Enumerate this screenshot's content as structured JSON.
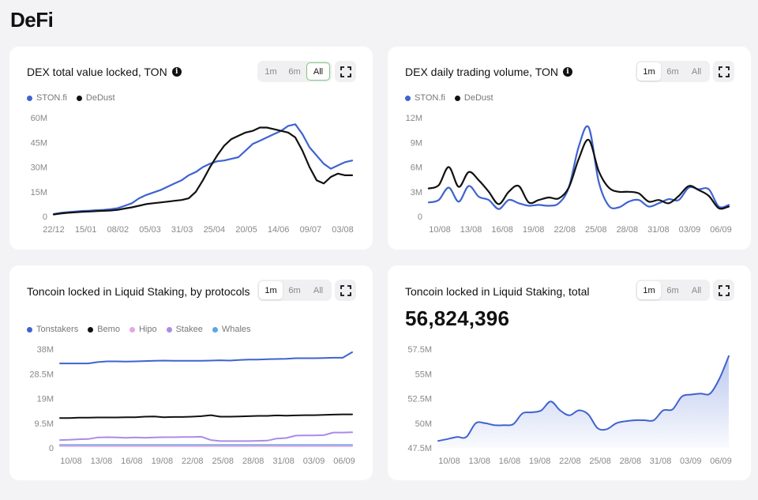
{
  "page": {
    "title": "DeFi"
  },
  "colors": {
    "blue": "#3f63d0",
    "black": "#111111",
    "pink": "#e7a6e6",
    "purple": "#a98ce8",
    "lightblue": "#5aa6e6"
  },
  "icons": {
    "info": "info-icon",
    "expand": "expand-icon"
  },
  "cards": [
    {
      "title": "DEX total value locked, TON",
      "periods": [
        "1m",
        "6m",
        "All"
      ],
      "active_period": "All",
      "legend": [
        {
          "name": "STON.fi",
          "color": "#3f63d0"
        },
        {
          "name": "DeDust",
          "color": "#111111"
        }
      ]
    },
    {
      "title": "DEX daily trading volume, TON",
      "periods": [
        "1m",
        "6m",
        "All"
      ],
      "active_period": "1m",
      "legend": [
        {
          "name": "STON.fi",
          "color": "#3f63d0"
        },
        {
          "name": "DeDust",
          "color": "#111111"
        }
      ]
    },
    {
      "title": "Toncoin locked in Liquid Staking, by protocols",
      "periods": [
        "1m",
        "6m",
        "All"
      ],
      "active_period": "1m",
      "legend": [
        {
          "name": "Tonstakers",
          "color": "#3f63d0"
        },
        {
          "name": "Bemo",
          "color": "#111111"
        },
        {
          "name": "Hipo",
          "color": "#e7a6e6"
        },
        {
          "name": "Stakee",
          "color": "#a98ce8"
        },
        {
          "name": "Whales",
          "color": "#5aa6e6"
        }
      ]
    },
    {
      "title": "Toncoin locked in Liquid Staking, total",
      "periods": [
        "1m",
        "6m",
        "All"
      ],
      "active_period": "1m",
      "big_value": "56,824,396"
    }
  ],
  "chart_data": [
    {
      "type": "line",
      "title": "DEX total value locked, TON",
      "x_ticks": [
        "22/12",
        "15/01",
        "08/02",
        "05/03",
        "31/03",
        "25/04",
        "20/05",
        "14/06",
        "09/07",
        "03/08"
      ],
      "y_ticks": [
        "0",
        "15M",
        "30M",
        "45M",
        "60M"
      ],
      "ylim": [
        0,
        60
      ],
      "y_unit": "M",
      "series": [
        {
          "name": "STON.fi",
          "color": "#3f63d0",
          "values": [
            1.5,
            2.2,
            2.6,
            3,
            3.3,
            3.5,
            3.8,
            4,
            4.4,
            5,
            6.5,
            8,
            11,
            13,
            14.5,
            16,
            18,
            20,
            22,
            25,
            27,
            30,
            32,
            33.5,
            34,
            35,
            36,
            40,
            44,
            46,
            48,
            50,
            52,
            55,
            56,
            50,
            42,
            37,
            32,
            29,
            31,
            33,
            34
          ]
        },
        {
          "name": "DeDust",
          "color": "#111111",
          "values": [
            1.2,
            1.8,
            2.2,
            2.5,
            2.8,
            3,
            3.2,
            3.4,
            3.6,
            4,
            4.8,
            5.5,
            6.5,
            7.5,
            8,
            8.5,
            9,
            9.5,
            10,
            11,
            15,
            22,
            30,
            37,
            43,
            47,
            49,
            51,
            52,
            54,
            54,
            53,
            52,
            51,
            48,
            40,
            30,
            22,
            20,
            24,
            26,
            25,
            25
          ]
        }
      ]
    },
    {
      "type": "line",
      "title": "DEX daily trading volume, TON",
      "x_ticks": [
        "10/08",
        "13/08",
        "16/08",
        "19/08",
        "22/08",
        "25/08",
        "28/08",
        "31/08",
        "03/09",
        "06/09"
      ],
      "y_ticks": [
        "0",
        "3M",
        "6M",
        "9M",
        "12M"
      ],
      "ylim": [
        0,
        12
      ],
      "y_unit": "M",
      "series": [
        {
          "name": "STON.fi",
          "color": "#3f63d0",
          "values": [
            1.7,
            2,
            3.5,
            1.8,
            3.7,
            2.4,
            2,
            0.9,
            2,
            1.6,
            1.3,
            1.4,
            1.3,
            1.6,
            3.5,
            8.5,
            10.8,
            4.2,
            1.3,
            1.1,
            1.8,
            2,
            1.2,
            1.6,
            2.1,
            2,
            3.5,
            3.3,
            3.3,
            1.2,
            1.4
          ]
        },
        {
          "name": "DeDust",
          "color": "#111111",
          "values": [
            3.4,
            3.8,
            6,
            3.6,
            5.4,
            4.4,
            3,
            1.5,
            3,
            3.7,
            1.7,
            2,
            2.3,
            2.2,
            3.5,
            7,
            9.3,
            5.5,
            3.5,
            3,
            3,
            2.8,
            1.8,
            2,
            1.6,
            2.5,
            3.7,
            3.2,
            2.5,
            1,
            1.2
          ]
        }
      ]
    },
    {
      "type": "line",
      "title": "Toncoin locked in Liquid Staking, by protocols",
      "x_ticks": [
        "10/08",
        "13/08",
        "16/08",
        "19/08",
        "22/08",
        "25/08",
        "28/08",
        "31/08",
        "03/09",
        "06/09"
      ],
      "y_ticks": [
        "0",
        "9.5M",
        "19M",
        "28.5M",
        "38M"
      ],
      "ylim": [
        0,
        38
      ],
      "y_unit": "M",
      "series": [
        {
          "name": "Tonstakers",
          "color": "#3f63d0",
          "values": [
            32.5,
            32.5,
            32.5,
            32.5,
            33,
            33.3,
            33.3,
            33.2,
            33.3,
            33.4,
            33.5,
            33.6,
            33.5,
            33.5,
            33.5,
            33.5,
            33.6,
            33.7,
            33.6,
            33.8,
            34,
            34,
            34.1,
            34.2,
            34.3,
            34.5,
            34.5,
            34.5,
            34.6,
            34.7,
            34.7,
            36.8
          ]
        },
        {
          "name": "Bemo",
          "color": "#111111",
          "values": [
            11.5,
            11.5,
            11.6,
            11.6,
            11.7,
            11.7,
            11.7,
            11.8,
            11.8,
            12,
            12.1,
            11.8,
            11.9,
            11.9,
            12,
            12.2,
            12.6,
            12,
            12,
            12.1,
            12.2,
            12.3,
            12.3,
            12.5,
            12.4,
            12.5,
            12.6,
            12.6,
            12.7,
            12.8,
            12.9,
            12.9
          ]
        },
        {
          "name": "Hipo",
          "color": "#e7a6e6",
          "values": [
            0.7,
            0.7,
            0.7,
            0.7,
            0.7,
            0.7,
            0.7,
            0.7,
            0.7,
            0.7,
            0.7,
            0.7,
            0.7,
            0.7,
            0.7,
            0.7,
            0.7,
            0.7,
            0.7,
            0.7,
            0.7,
            0.7,
            0.7,
            0.7,
            0.7,
            0.7,
            0.7,
            0.7,
            0.7,
            0.7,
            0.7,
            0.7
          ]
        },
        {
          "name": "Stakee",
          "color": "#a98ce8",
          "values": [
            3,
            3.1,
            3.3,
            3.4,
            4,
            4.1,
            4,
            3.9,
            4,
            3.9,
            4,
            4.1,
            4.1,
            4.2,
            4.2,
            4.3,
            3,
            2.6,
            2.6,
            2.6,
            2.6,
            2.7,
            2.8,
            3.6,
            3.8,
            4.7,
            4.8,
            4.8,
            4.9,
            5.9,
            5.9,
            6
          ]
        },
        {
          "name": "Whales",
          "color": "#5aa6e6",
          "values": [
            1.1,
            1.1,
            1.1,
            1.1,
            1.1,
            1.1,
            1.1,
            1.1,
            1.1,
            1.1,
            1.1,
            1.1,
            1.1,
            1.1,
            1.1,
            1.1,
            1.1,
            1.1,
            1.1,
            1.1,
            1.1,
            1.1,
            1.1,
            1.1,
            1.1,
            1.1,
            1.1,
            1.1,
            1.1,
            1.1,
            1.1,
            1.1
          ]
        }
      ]
    },
    {
      "type": "area",
      "title": "Toncoin locked in Liquid Staking, total",
      "x_ticks": [
        "10/08",
        "13/08",
        "16/08",
        "19/08",
        "22/08",
        "25/08",
        "28/08",
        "31/08",
        "03/09",
        "06/09"
      ],
      "y_ticks": [
        "47.5M",
        "50M",
        "52.5M",
        "55M",
        "57.5M"
      ],
      "ylim": [
        47.5,
        57.5
      ],
      "y_unit": "M",
      "series": [
        {
          "name": "",
          "color": "#3f63d0",
          "values": [
            48.2,
            48.4,
            48.6,
            48.6,
            50,
            50,
            49.8,
            49.8,
            49.9,
            51,
            51.1,
            51.3,
            52.2,
            51.3,
            50.8,
            51.3,
            50.9,
            49.5,
            49.4,
            50,
            50.2,
            50.3,
            50.3,
            50.3,
            51.3,
            51.4,
            52.7,
            52.9,
            53,
            53,
            54.5,
            56.8
          ]
        }
      ]
    }
  ]
}
